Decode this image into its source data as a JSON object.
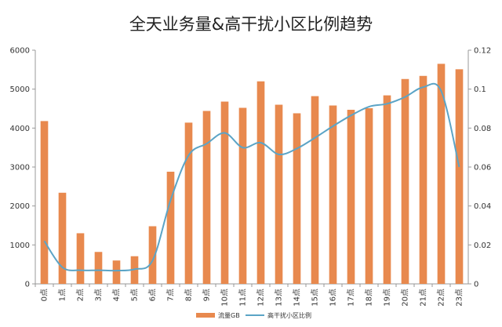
{
  "chart_data": {
    "type": "bar",
    "title": "全天业务量&高干扰小区比例趋势",
    "categories": [
      "0点",
      "1点",
      "2点",
      "3点",
      "4点",
      "5点",
      "6点",
      "7点",
      "8点",
      "9点",
      "10点",
      "11点",
      "12点",
      "13点",
      "14点",
      "15点",
      "16点",
      "17点",
      "18点",
      "19点",
      "20点",
      "21点",
      "22点",
      "23点"
    ],
    "series": [
      {
        "name": "流量GB",
        "type": "bar",
        "axis": "left",
        "color": "#E8894E",
        "values": [
          4180,
          2340,
          1300,
          820,
          600,
          710,
          1480,
          2880,
          4140,
          4440,
          4680,
          4520,
          5200,
          4600,
          4380,
          4820,
          4580,
          4470,
          4510,
          4840,
          5260,
          5340,
          5650,
          5510
        ]
      },
      {
        "name": "高干扰小区比例",
        "type": "line",
        "axis": "right",
        "color": "#5BA4C6",
        "values": [
          0.022,
          0.0085,
          0.007,
          0.007,
          0.0068,
          0.0075,
          0.012,
          0.043,
          0.066,
          0.072,
          0.0775,
          0.07,
          0.0725,
          0.0665,
          0.0695,
          0.075,
          0.081,
          0.0865,
          0.091,
          0.0925,
          0.096,
          0.101,
          0.099,
          0.06
        ]
      }
    ],
    "yleft": {
      "min": 0,
      "max": 6000,
      "ticks": [
        "0",
        "1000",
        "2000",
        "3000",
        "4000",
        "5000",
        "6000"
      ]
    },
    "yright": {
      "min": 0,
      "max": 0.12,
      "ticks": [
        "0",
        "0.02",
        "0.04",
        "0.06",
        "0.08",
        "0.1",
        "0.12"
      ]
    },
    "grid": false,
    "legend": {
      "position": "bottom"
    }
  }
}
